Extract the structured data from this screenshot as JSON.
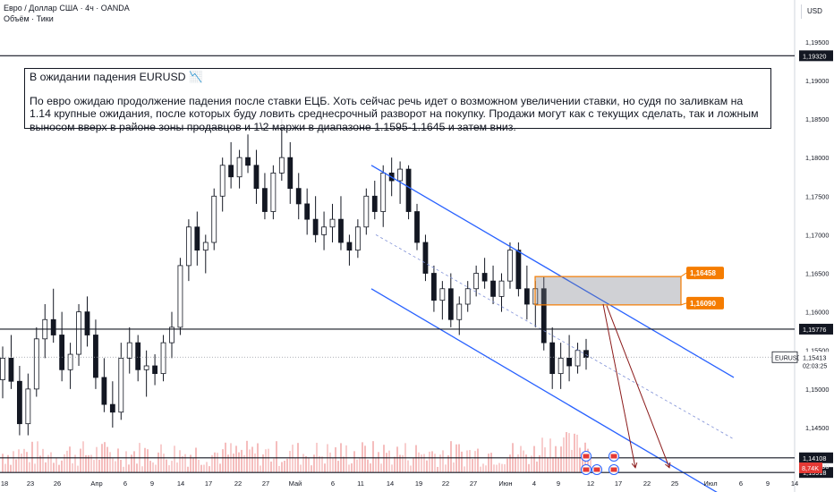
{
  "header": {
    "title": "Евро / Доллар США · 4ч · OANDA",
    "subtitle": "Объём · Тики"
  },
  "currency": "USD",
  "note": {
    "title": "В ожидании падения EURUSD 📉",
    "body": "По евро ожидаю продолжение падения после ставки ЕЦБ. Хоть сейчас речь идет о возможном увеличении ставки, но судя по заливкам на 1.14 крупные ожидания, после которых буду ловить среднесрочный разворот на покупку. Продажи могут как с текущих сделать, так и ложным выносом вверх в районе зоны продавцов и 1\\2 маржи в диапазоне 1.1595-1.1645 и затем вниз."
  },
  "chart_data": {
    "type": "candlestick",
    "symbol": "EURUSD",
    "timeframe": "4ч",
    "ylim": [
      1.1392,
      1.1995
    ],
    "y_ticks": [
      "1,19500",
      "1,19000",
      "1,18500",
      "1,18000",
      "1,17500",
      "1,17000",
      "1,16500",
      "1,16000",
      "1,15500",
      "1,15000",
      "1,14500",
      "1,14000"
    ],
    "y_tick_values": [
      1.195,
      1.19,
      1.185,
      1.18,
      1.175,
      1.17,
      1.165,
      1.16,
      1.155,
      1.15,
      1.145,
      1.14
    ],
    "x_ticks": [
      "18",
      "23",
      "26",
      "Апр",
      "6",
      "9",
      "14",
      "17",
      "22",
      "27",
      "Май",
      "6",
      "11",
      "14",
      "19",
      "22",
      "27",
      "Июн",
      "4",
      "9",
      "12",
      "17",
      "22",
      "25",
      "Июл",
      "6",
      "9",
      "14"
    ],
    "x_tick_positions": [
      5,
      34,
      64,
      108,
      140,
      170,
      202,
      233,
      266,
      297,
      330,
      372,
      403,
      436,
      468,
      498,
      529,
      565,
      597,
      624,
      660,
      691,
      723,
      754,
      794,
      828,
      858,
      888
    ],
    "price_lines": [
      {
        "label": "1,19320",
        "value": 1.1932
      },
      {
        "label": "1,15776",
        "value": 1.15776
      },
      {
        "label": "1,14108",
        "value": 1.14108
      },
      {
        "label": "1,13918",
        "value": 1.13918
      }
    ],
    "current_price": {
      "symbol": "EURUSD",
      "label": "1,15413",
      "value": 1.15413,
      "timer": "02:03:25"
    },
    "zone_labels": [
      {
        "label": "1,16458",
        "value": 1.16458
      },
      {
        "label": "1,16090",
        "value": 1.1609
      }
    ],
    "volume_label": "8,74K",
    "extra_tick": "1,14000",
    "ohlc": [
      [
        1.1512,
        1.1555,
        1.1488,
        1.154
      ],
      [
        1.154,
        1.157,
        1.15,
        1.151
      ],
      [
        1.151,
        1.153,
        1.144,
        1.1455
      ],
      [
        1.1455,
        1.152,
        1.144,
        1.15
      ],
      [
        1.15,
        1.158,
        1.149,
        1.1565
      ],
      [
        1.1565,
        1.161,
        1.154,
        1.159
      ],
      [
        1.159,
        1.163,
        1.156,
        1.157
      ],
      [
        1.157,
        1.16,
        1.151,
        1.1525
      ],
      [
        1.1525,
        1.156,
        1.15,
        1.1545
      ],
      [
        1.1545,
        1.161,
        1.153,
        1.16
      ],
      [
        1.16,
        1.162,
        1.1555,
        1.157
      ],
      [
        1.157,
        1.159,
        1.15,
        1.1515
      ],
      [
        1.1515,
        1.154,
        1.147,
        1.148
      ],
      [
        1.148,
        1.151,
        1.145,
        1.147
      ],
      [
        1.147,
        1.156,
        1.146,
        1.154
      ],
      [
        1.154,
        1.158,
        1.152,
        1.156
      ],
      [
        1.156,
        1.157,
        1.151,
        1.1525
      ],
      [
        1.1525,
        1.155,
        1.149,
        1.153
      ],
      [
        1.153,
        1.1545,
        1.1505,
        1.152
      ],
      [
        1.152,
        1.157,
        1.151,
        1.156
      ],
      [
        1.156,
        1.16,
        1.154,
        1.158
      ],
      [
        1.158,
        1.167,
        1.157,
        1.166
      ],
      [
        1.166,
        1.172,
        1.164,
        1.171
      ],
      [
        1.171,
        1.173,
        1.166,
        1.168
      ],
      [
        1.168,
        1.17,
        1.165,
        1.169
      ],
      [
        1.169,
        1.176,
        1.168,
        1.175
      ],
      [
        1.175,
        1.18,
        1.173,
        1.179
      ],
      [
        1.179,
        1.182,
        1.176,
        1.1775
      ],
      [
        1.1775,
        1.181,
        1.176,
        1.18
      ],
      [
        1.18,
        1.183,
        1.178,
        1.179
      ],
      [
        1.179,
        1.181,
        1.174,
        1.176
      ],
      [
        1.176,
        1.178,
        1.172,
        1.173
      ],
      [
        1.173,
        1.179,
        1.172,
        1.178
      ],
      [
        1.178,
        1.185,
        1.177,
        1.18
      ],
      [
        1.18,
        1.182,
        1.174,
        1.176
      ],
      [
        1.176,
        1.178,
        1.172,
        1.174
      ],
      [
        1.174,
        1.176,
        1.17,
        1.172
      ],
      [
        1.172,
        1.175,
        1.169,
        1.17
      ],
      [
        1.17,
        1.173,
        1.168,
        1.171
      ],
      [
        1.171,
        1.174,
        1.169,
        1.172
      ],
      [
        1.172,
        1.175,
        1.168,
        1.169
      ],
      [
        1.169,
        1.17,
        1.166,
        1.168
      ],
      [
        1.168,
        1.172,
        1.167,
        1.171
      ],
      [
        1.171,
        1.176,
        1.17,
        1.175
      ],
      [
        1.175,
        1.177,
        1.172,
        1.173
      ],
      [
        1.173,
        1.179,
        1.171,
        1.178
      ],
      [
        1.178,
        1.18,
        1.175,
        1.177
      ],
      [
        1.177,
        1.1795,
        1.174,
        1.1785
      ],
      [
        1.1785,
        1.179,
        1.172,
        1.173
      ],
      [
        1.173,
        1.174,
        1.168,
        1.169
      ],
      [
        1.169,
        1.17,
        1.164,
        1.165
      ],
      [
        1.165,
        1.166,
        1.16,
        1.1615
      ],
      [
        1.1615,
        1.164,
        1.159,
        1.163
      ],
      [
        1.163,
        1.165,
        1.158,
        1.159
      ],
      [
        1.159,
        1.162,
        1.157,
        1.161
      ],
      [
        1.161,
        1.164,
        1.16,
        1.163
      ],
      [
        1.163,
        1.166,
        1.162,
        1.165
      ],
      [
        1.165,
        1.167,
        1.163,
        1.164
      ],
      [
        1.164,
        1.166,
        1.161,
        1.162
      ],
      [
        1.162,
        1.165,
        1.16,
        1.164
      ],
      [
        1.164,
        1.169,
        1.163,
        1.168
      ],
      [
        1.168,
        1.169,
        1.162,
        1.163
      ],
      [
        1.163,
        1.166,
        1.159,
        1.161
      ],
      [
        1.161,
        1.164,
        1.158,
        1.163
      ],
      [
        1.163,
        1.1645,
        1.155,
        1.156
      ],
      [
        1.156,
        1.158,
        1.15,
        1.152
      ],
      [
        1.152,
        1.156,
        1.15,
        1.154
      ],
      [
        1.154,
        1.157,
        1.151,
        1.153
      ],
      [
        1.153,
        1.156,
        1.152,
        1.155
      ],
      [
        1.155,
        1.1565,
        1.1525,
        1.1541
      ]
    ]
  }
}
